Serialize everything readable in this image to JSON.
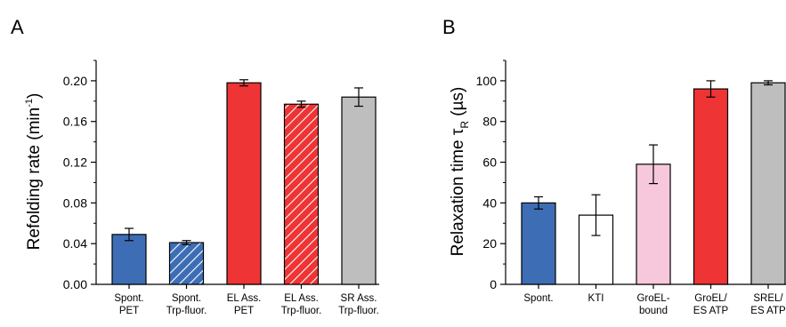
{
  "panels": {
    "A": {
      "letter": "A"
    },
    "B": {
      "letter": "B"
    }
  },
  "chart_data": [
    {
      "type": "bar",
      "panel": "A",
      "ylabel": "Refolding rate (min⁻¹)",
      "ylabel_main": "Refolding rate (min",
      "ylabel_sup": "-1",
      "ylabel_close": ")",
      "ylim": [
        0,
        0.22
      ],
      "yticks": [
        "0.00",
        "0.04",
        "0.08",
        "0.12",
        "0.16",
        "0.20"
      ],
      "ytick_values": [
        0,
        0.04,
        0.08,
        0.12,
        0.16,
        0.2
      ],
      "categories": [
        [
          "Spont.",
          "PET"
        ],
        [
          "Spont.",
          "Trp-fluor."
        ],
        [
          "EL Ass.",
          "PET"
        ],
        [
          "EL Ass.",
          "Trp-fluor."
        ],
        [
          "SR Ass.",
          "Trp-fluor."
        ]
      ],
      "values": [
        0.049,
        0.041,
        0.198,
        0.177,
        0.184
      ],
      "errors": [
        0.006,
        0.002,
        0.003,
        0.003,
        0.009
      ],
      "colors": [
        "#3d6eb5",
        "#3d6eb5",
        "#ee3434",
        "#ee3434",
        "#bebebe"
      ],
      "hatched": [
        false,
        true,
        false,
        true,
        false
      ]
    },
    {
      "type": "bar",
      "panel": "B",
      "ylabel": "Relaxation time τR (µs)",
      "ylabel_main": "Relaxation time τ",
      "ylabel_sub": "R",
      "ylabel_close": " (µs)",
      "ylim": [
        0,
        110
      ],
      "yticks": [
        "0",
        "20",
        "40",
        "60",
        "80",
        "100"
      ],
      "ytick_values": [
        0,
        20,
        40,
        60,
        80,
        100
      ],
      "categories": [
        [
          "Spont."
        ],
        [
          "KTI"
        ],
        [
          "GroEL-",
          "bound"
        ],
        [
          "GroEL/",
          "ES ATP"
        ],
        [
          "SREL/",
          "ES ATP"
        ]
      ],
      "values": [
        40,
        34,
        59,
        96,
        99
      ],
      "errors": [
        3,
        10,
        9.5,
        4,
        1
      ],
      "colors": [
        "#3d6eb5",
        "#ffffff",
        "#f7c8dc",
        "#ee3434",
        "#bebebe"
      ],
      "hatched": [
        false,
        false,
        false,
        false,
        false
      ]
    }
  ]
}
